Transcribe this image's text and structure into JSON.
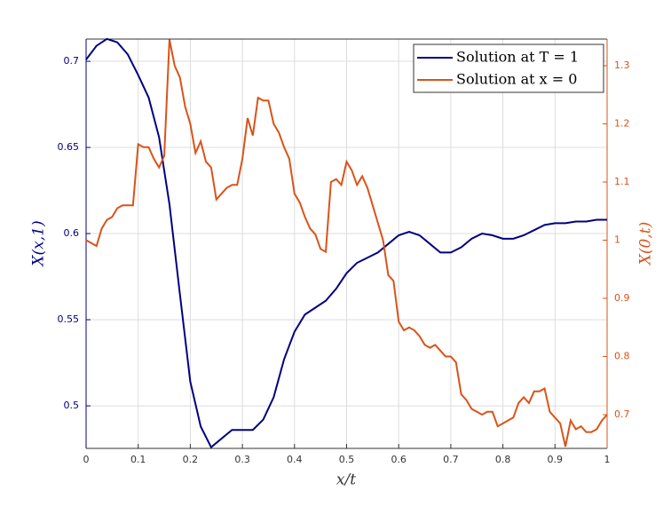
{
  "chart_data": {
    "type": "line",
    "xlabel": "x/t",
    "ylabel": "X(x,1)",
    "y2label": "X(0,t)",
    "xlim": [
      0,
      1
    ],
    "xticks": [
      0,
      0.1,
      0.2,
      0.3,
      0.4,
      0.5,
      0.6,
      0.7,
      0.8,
      0.9,
      1
    ],
    "ylim": [
      0.4753,
      0.7129
    ],
    "yticks": [
      0.5,
      0.55,
      0.6,
      0.65,
      0.7
    ],
    "y2lim": [
      0.642,
      1.3458
    ],
    "y2ticks": [
      0.7,
      0.8,
      0.9,
      1,
      1.1,
      1.2,
      1.3
    ],
    "grid": true,
    "legend": "upper right",
    "series": [
      {
        "name": "Solution at T = 1",
        "color": "#000080",
        "axis": "y",
        "x": [
          0,
          0.02,
          0.04,
          0.06,
          0.08,
          0.1,
          0.12,
          0.14,
          0.16,
          0.18,
          0.2,
          0.22,
          0.24,
          0.26,
          0.28,
          0.3,
          0.32,
          0.34,
          0.36,
          0.38,
          0.4,
          0.42,
          0.44,
          0.46,
          0.48,
          0.5,
          0.52,
          0.54,
          0.56,
          0.58,
          0.6,
          0.62,
          0.64,
          0.66,
          0.68,
          0.7,
          0.72,
          0.74,
          0.76,
          0.78,
          0.8,
          0.82,
          0.84,
          0.86,
          0.88,
          0.9,
          0.92,
          0.94,
          0.96,
          0.98,
          1
        ],
        "values": [
          0.701,
          0.709,
          0.713,
          0.711,
          0.704,
          0.692,
          0.679,
          0.656,
          0.617,
          0.565,
          0.514,
          0.488,
          0.476,
          0.481,
          0.486,
          0.486,
          0.486,
          0.492,
          0.505,
          0.527,
          0.543,
          0.553,
          0.557,
          0.561,
          0.568,
          0.577,
          0.583,
          0.586,
          0.589,
          0.594,
          0.599,
          0.601,
          0.599,
          0.594,
          0.589,
          0.589,
          0.592,
          0.597,
          0.6,
          0.599,
          0.597,
          0.597,
          0.599,
          0.602,
          0.605,
          0.606,
          0.606,
          0.607,
          0.607,
          0.608,
          0.608
        ]
      },
      {
        "name": "Solution at x = 0",
        "color": "#d95319",
        "axis": "y2",
        "x": [
          0,
          0.01,
          0.02,
          0.03,
          0.04,
          0.05,
          0.06,
          0.07,
          0.08,
          0.09,
          0.1,
          0.11,
          0.12,
          0.13,
          0.14,
          0.15,
          0.16,
          0.17,
          0.18,
          0.19,
          0.2,
          0.21,
          0.22,
          0.23,
          0.24,
          0.25,
          0.26,
          0.27,
          0.28,
          0.29,
          0.3,
          0.31,
          0.32,
          0.33,
          0.34,
          0.35,
          0.36,
          0.37,
          0.38,
          0.39,
          0.4,
          0.41,
          0.42,
          0.43,
          0.44,
          0.45,
          0.46,
          0.47,
          0.48,
          0.49,
          0.5,
          0.51,
          0.52,
          0.53,
          0.54,
          0.55,
          0.56,
          0.57,
          0.58,
          0.59,
          0.6,
          0.61,
          0.62,
          0.63,
          0.64,
          0.65,
          0.66,
          0.67,
          0.68,
          0.69,
          0.7,
          0.71,
          0.72,
          0.73,
          0.74,
          0.75,
          0.76,
          0.77,
          0.78,
          0.79,
          0.8,
          0.81,
          0.82,
          0.83,
          0.84,
          0.85,
          0.86,
          0.87,
          0.88,
          0.89,
          0.9,
          0.91,
          0.92,
          0.93,
          0.94,
          0.95,
          0.96,
          0.97,
          0.98,
          0.99,
          1
        ],
        "values": [
          1.0,
          0.995,
          0.99,
          1.02,
          1.035,
          1.04,
          1.055,
          1.06,
          1.06,
          1.06,
          1.165,
          1.16,
          1.16,
          1.14,
          1.125,
          1.145,
          1.345,
          1.3,
          1.28,
          1.23,
          1.2,
          1.15,
          1.17,
          1.135,
          1.125,
          1.07,
          1.08,
          1.09,
          1.095,
          1.095,
          1.14,
          1.21,
          1.18,
          1.245,
          1.24,
          1.24,
          1.2,
          1.185,
          1.16,
          1.14,
          1.08,
          1.065,
          1.04,
          1.02,
          1.01,
          0.985,
          0.98,
          1.1,
          1.105,
          1.095,
          1.135,
          1.12,
          1.095,
          1.11,
          1.09,
          1.06,
          1.03,
          1.0,
          0.94,
          0.93,
          0.86,
          0.845,
          0.85,
          0.845,
          0.835,
          0.82,
          0.815,
          0.82,
          0.81,
          0.8,
          0.8,
          0.79,
          0.735,
          0.725,
          0.71,
          0.705,
          0.7,
          0.705,
          0.705,
          0.68,
          0.685,
          0.69,
          0.695,
          0.72,
          0.73,
          0.72,
          0.74,
          0.74,
          0.745,
          0.705,
          0.695,
          0.685,
          0.645,
          0.69,
          0.675,
          0.68,
          0.67,
          0.67,
          0.675,
          0.69,
          0.7
        ]
      }
    ]
  }
}
